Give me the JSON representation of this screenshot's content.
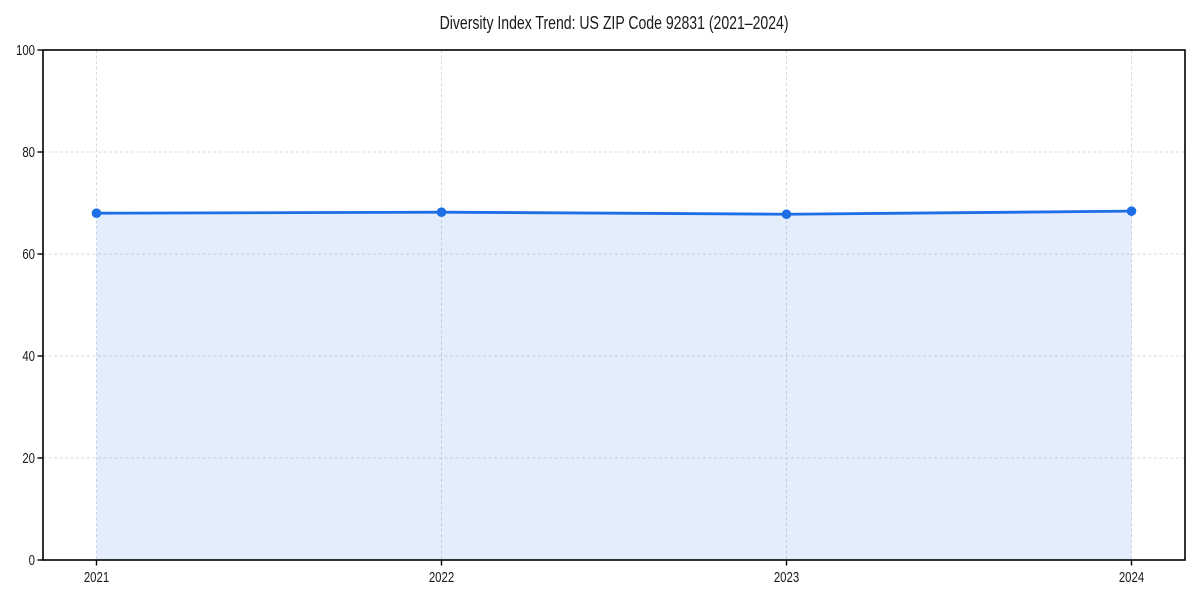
{
  "chart_data": {
    "type": "area",
    "title": "Diversity Index Trend: US ZIP Code 92831 (2021–2024)",
    "categories": [
      "2021",
      "2022",
      "2023",
      "2024"
    ],
    "series": [
      {
        "name": "Diversity Index",
        "values": [
          68.0,
          68.2,
          67.8,
          68.4
        ]
      }
    ],
    "xlabel": "",
    "ylabel": "",
    "ylim": [
      0,
      100
    ],
    "yticks": [
      0,
      20,
      40,
      60,
      80,
      100
    ],
    "grid": true,
    "legend": false,
    "colors": {
      "line": "#1e6ee6",
      "fill": "#1e6ee6",
      "fill_opacity": 0.12,
      "grid": "#d9d9d9",
      "axis": "#000000",
      "text": "#1a1a1a",
      "background": "#ffffff"
    }
  }
}
